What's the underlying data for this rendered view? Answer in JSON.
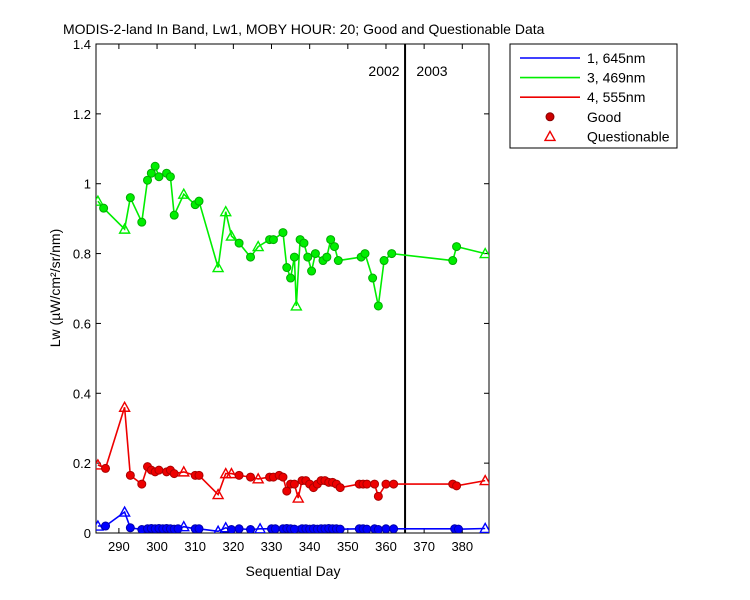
{
  "chart_data": {
    "type": "line",
    "title": "MODIS-2-land In Band,  Lw1, MOBY HOUR: 20;  Good and Questionable Data",
    "xlabel": "Sequential Day",
    "ylabel": "Lw (µW/cm²/sr/nm)",
    "xlim": [
      284,
      387
    ],
    "ylim": [
      0,
      1.4
    ],
    "x_ticks": [
      290,
      300,
      310,
      320,
      330,
      340,
      350,
      360,
      370,
      380
    ],
    "y_ticks": [
      0,
      0.2,
      0.4,
      0.6,
      0.8,
      1,
      1.2,
      1.4
    ],
    "grid": false,
    "legend_position": "outside-top-right",
    "year_divider": {
      "x": 365,
      "left_label": "2002",
      "right_label": "2003"
    },
    "series": [
      {
        "name": "1, 645nm",
        "color": "#0000ff",
        "x": [
          284.5,
          286.5,
          291.5,
          293,
          296,
          297.5,
          298.5,
          299.5,
          300.5,
          301.5,
          302.5,
          303.5,
          304.5,
          305.5,
          307,
          310,
          311,
          316,
          318,
          319.5,
          321.5,
          324.5,
          327,
          330,
          331,
          333,
          334,
          335,
          336,
          337,
          338,
          339,
          340,
          341,
          342,
          343,
          344,
          345,
          346,
          347,
          348,
          353,
          354,
          355,
          357,
          358,
          360,
          362,
          378,
          379,
          386
        ],
        "y": [
          0.02,
          0.02,
          0.06,
          0.015,
          0.01,
          0.012,
          0.013,
          0.012,
          0.013,
          0.012,
          0.013,
          0.012,
          0.011,
          0.012,
          0.018,
          0.012,
          0.012,
          0.005,
          0.015,
          0.01,
          0.012,
          0.01,
          0.012,
          0.012,
          0.012,
          0.012,
          0.013,
          0.012,
          0.011,
          0.004,
          0.012,
          0.012,
          0.011,
          0.012,
          0.011,
          0.012,
          0.012,
          0.013,
          0.012,
          0.012,
          0.011,
          0.012,
          0.012,
          0.011,
          0.012,
          0.01,
          0.012,
          0.012,
          0.012,
          0.011,
          0.013
        ],
        "quality": [
          "Q",
          "G",
          "Q",
          "G",
          "G",
          "G",
          "G",
          "G",
          "G",
          "G",
          "G",
          "G",
          "G",
          "G",
          "Q",
          "G",
          "G",
          "Q",
          "Q",
          "G",
          "G",
          "G",
          "Q",
          "G",
          "G",
          "G",
          "G",
          "G",
          "G",
          "Q",
          "G",
          "G",
          "G",
          "G",
          "G",
          "G",
          "G",
          "G",
          "G",
          "G",
          "G",
          "G",
          "G",
          "G",
          "G",
          "G",
          "G",
          "G",
          "G",
          "G",
          "Q"
        ]
      },
      {
        "name": "3, 469nm",
        "color": "#00ee00",
        "x": [
          284.5,
          286,
          291.5,
          293,
          296,
          297.5,
          298.5,
          299.5,
          300.5,
          302.5,
          303.5,
          304.5,
          307,
          310,
          311,
          316,
          318,
          319.5,
          321.5,
          324.5,
          326.5,
          329.5,
          330.5,
          333,
          334,
          335,
          336,
          336.5,
          337.5,
          338.5,
          339.5,
          340.5,
          341.5,
          343.5,
          344.5,
          345.5,
          346.5,
          347.5,
          353.5,
          354.5,
          356.5,
          358,
          359.5,
          361.5,
          377.5,
          378.5,
          386
        ],
        "y": [
          0.95,
          0.93,
          0.87,
          0.96,
          0.89,
          1.01,
          1.03,
          1.05,
          1.02,
          1.03,
          1.02,
          0.91,
          0.97,
          0.94,
          0.95,
          0.76,
          0.92,
          0.85,
          0.83,
          0.79,
          0.82,
          0.84,
          0.84,
          0.86,
          0.76,
          0.73,
          0.79,
          0.65,
          0.84,
          0.83,
          0.79,
          0.75,
          0.8,
          0.78,
          0.79,
          0.84,
          0.82,
          0.78,
          0.79,
          0.8,
          0.73,
          0.65,
          0.78,
          0.8,
          0.78,
          0.82,
          0.8
        ],
        "quality": [
          "Q",
          "G",
          "Q",
          "G",
          "G",
          "G",
          "G",
          "G",
          "G",
          "G",
          "G",
          "G",
          "Q",
          "G",
          "G",
          "Q",
          "Q",
          "Q",
          "G",
          "G",
          "Q",
          "G",
          "G",
          "G",
          "G",
          "G",
          "G",
          "Q",
          "G",
          "G",
          "G",
          "G",
          "G",
          "G",
          "G",
          "G",
          "G",
          "G",
          "G",
          "G",
          "G",
          "G",
          "G",
          "G",
          "G",
          "G",
          "Q"
        ]
      },
      {
        "name": "4, 555nm",
        "color": "#ee0000",
        "x": [
          284.5,
          286.5,
          291.5,
          293,
          296,
          297.5,
          298.5,
          299.5,
          300.5,
          302.5,
          303.5,
          304.5,
          307,
          310,
          311,
          316,
          318,
          319.5,
          321.5,
          324.5,
          326.5,
          329.5,
          330.5,
          332,
          333,
          334,
          335,
          336,
          337,
          338,
          339,
          340,
          341,
          342,
          343,
          344,
          345,
          346,
          347,
          348,
          353,
          354,
          355,
          357,
          358,
          360,
          362,
          377.5,
          378.5,
          386
        ],
        "y": [
          0.195,
          0.185,
          0.36,
          0.165,
          0.14,
          0.19,
          0.18,
          0.175,
          0.18,
          0.175,
          0.18,
          0.17,
          0.175,
          0.165,
          0.165,
          0.11,
          0.17,
          0.17,
          0.165,
          0.16,
          0.155,
          0.16,
          0.16,
          0.165,
          0.16,
          0.12,
          0.14,
          0.14,
          0.1,
          0.15,
          0.15,
          0.14,
          0.13,
          0.14,
          0.15,
          0.15,
          0.145,
          0.145,
          0.14,
          0.13,
          0.14,
          0.14,
          0.14,
          0.14,
          0.105,
          0.14,
          0.14,
          0.14,
          0.135,
          0.15
        ],
        "quality": [
          "Q",
          "G",
          "Q",
          "G",
          "G",
          "G",
          "G",
          "G",
          "G",
          "G",
          "G",
          "G",
          "Q",
          "G",
          "G",
          "Q",
          "Q",
          "Q",
          "G",
          "G",
          "Q",
          "G",
          "G",
          "G",
          "G",
          "G",
          "G",
          "G",
          "Q",
          "G",
          "G",
          "G",
          "G",
          "G",
          "G",
          "G",
          "G",
          "G",
          "G",
          "G",
          "G",
          "G",
          "G",
          "G",
          "G",
          "G",
          "G",
          "G",
          "G",
          "Q"
        ]
      }
    ],
    "legend_markers": [
      {
        "label": "Good",
        "marker": "filled-circle",
        "color": "#cc0000"
      },
      {
        "label": "Questionable",
        "marker": "open-triangle",
        "color": "#ee0000"
      }
    ]
  }
}
